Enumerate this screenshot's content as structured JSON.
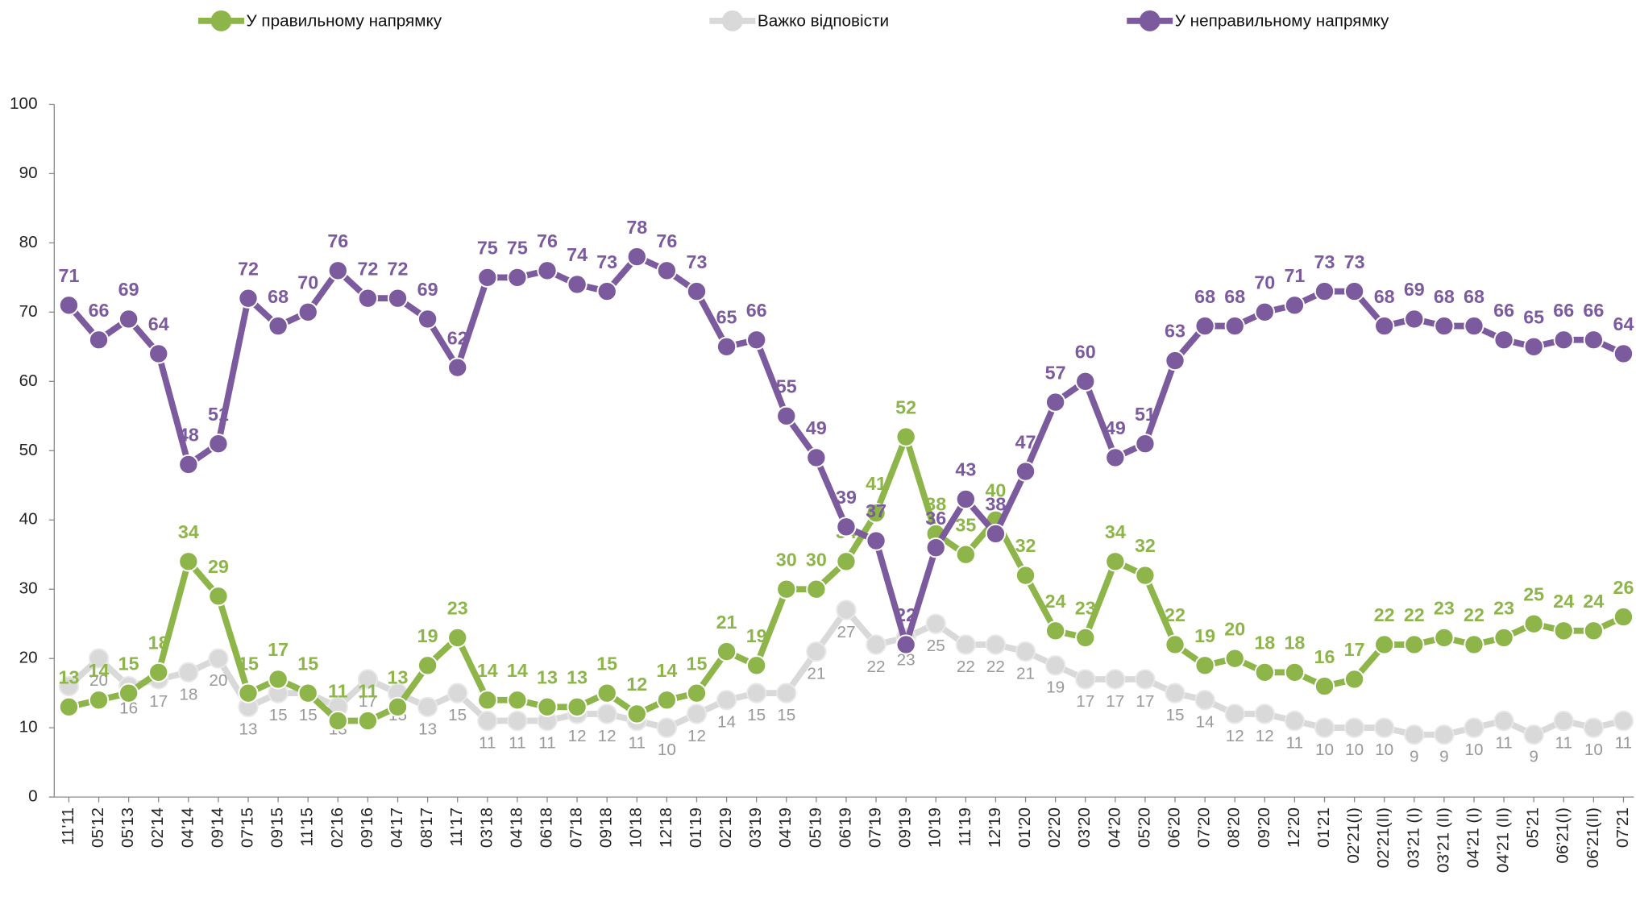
{
  "chart_data": {
    "type": "line",
    "categories": [
      "11'11",
      "05'12",
      "05'13",
      "02'14",
      "04'14",
      "09'14",
      "07'15",
      "09'15",
      "11'15",
      "02'16",
      "09'16",
      "04'17",
      "08'17",
      "11'17",
      "03'18",
      "04'18",
      "06'18",
      "07'18",
      "09'18",
      "10'18",
      "12'18",
      "01'19",
      "02'19",
      "03'19",
      "04'19",
      "05'19",
      "06'19",
      "07'19",
      "09'19",
      "10'19",
      "11'19",
      "12'19",
      "01'20",
      "02'20",
      "03'20",
      "04'20",
      "05'20",
      "06'20",
      "07'20",
      "08'20",
      "09'20",
      "12'20",
      "01'21",
      "02'21(I)",
      "02'21(II)",
      "03'21 (I)",
      "03'21 (II)",
      "04'21 (I)",
      "04'21 (II)",
      "05'21",
      "06'21(I)",
      "06'21(II)",
      "07'21"
    ],
    "series": [
      {
        "name": "У правильному напрямку",
        "color": "#8db54a",
        "values": [
          13,
          14,
          15,
          18,
          34,
          29,
          15,
          17,
          15,
          11,
          11,
          13,
          19,
          23,
          14,
          14,
          13,
          13,
          15,
          12,
          14,
          15,
          21,
          19,
          30,
          30,
          34,
          41,
          52,
          38,
          35,
          40,
          32,
          24,
          23,
          34,
          32,
          22,
          19,
          20,
          18,
          18,
          16,
          17,
          22,
          22,
          23,
          22,
          23,
          25,
          24,
          24,
          26
        ]
      },
      {
        "name": "Важко відповісти",
        "color": "#d9d9d9",
        "values": [
          16,
          20,
          16,
          17,
          18,
          20,
          13,
          15,
          15,
          13,
          17,
          15,
          13,
          15,
          11,
          11,
          11,
          12,
          12,
          11,
          10,
          12,
          14,
          15,
          15,
          21,
          27,
          22,
          23,
          25,
          22,
          22,
          21,
          19,
          17,
          17,
          17,
          15,
          14,
          12,
          12,
          11,
          10,
          10,
          10,
          9,
          9,
          10,
          11,
          9,
          11,
          10,
          11
        ]
      },
      {
        "name": "У неправильному напрямку",
        "color": "#7b5a9e",
        "values": [
          71,
          66,
          69,
          64,
          48,
          51,
          72,
          68,
          70,
          76,
          72,
          72,
          69,
          62,
          75,
          75,
          76,
          74,
          73,
          78,
          76,
          73,
          65,
          66,
          55,
          49,
          39,
          37,
          22,
          36,
          43,
          38,
          47,
          57,
          60,
          49,
          51,
          63,
          68,
          68,
          70,
          71,
          73,
          73,
          68,
          69,
          68,
          68,
          66,
          65,
          66,
          66,
          64
        ]
      }
    ],
    "ylim": [
      0,
      100
    ],
    "yticks": [
      0,
      10,
      20,
      30,
      40,
      50,
      60,
      70,
      80,
      90,
      100
    ]
  }
}
